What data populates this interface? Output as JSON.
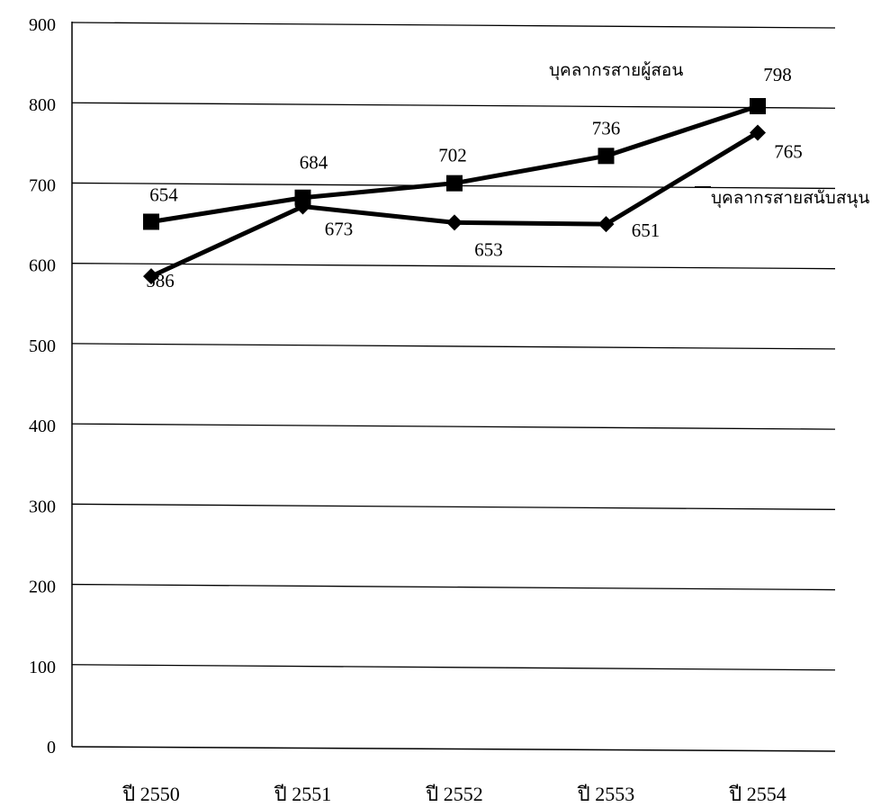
{
  "chart_data": {
    "type": "line",
    "title": "",
    "xlabel": "",
    "ylabel": "",
    "ylim": [
      0,
      900
    ],
    "yticks": [
      0,
      100,
      200,
      300,
      400,
      500,
      600,
      700,
      800,
      900
    ],
    "ytick_labels": [
      "0",
      "100",
      "200",
      "300",
      "400",
      "500",
      "600",
      "700",
      "800",
      "900"
    ],
    "grid": true,
    "legend": "none",
    "categories": [
      "ปี 2550",
      "ปี 2551",
      "ปี 2552",
      "ปี 2553",
      "ปี 2554"
    ],
    "series": [
      {
        "name": "บุคลากรสายผู้สอน",
        "marker": "square",
        "color": "#000000",
        "values": [
          654,
          684,
          702,
          736,
          798
        ],
        "labels": [
          "654",
          "684",
          "702",
          "736",
          "798"
        ]
      },
      {
        "name": "บุคลากรสายสนับสนุน",
        "marker": "diamond",
        "color": "#000000",
        "values": [
          586,
          673,
          653,
          651,
          765
        ],
        "labels": [
          "586",
          "673",
          "653",
          "651",
          "765"
        ]
      }
    ]
  }
}
